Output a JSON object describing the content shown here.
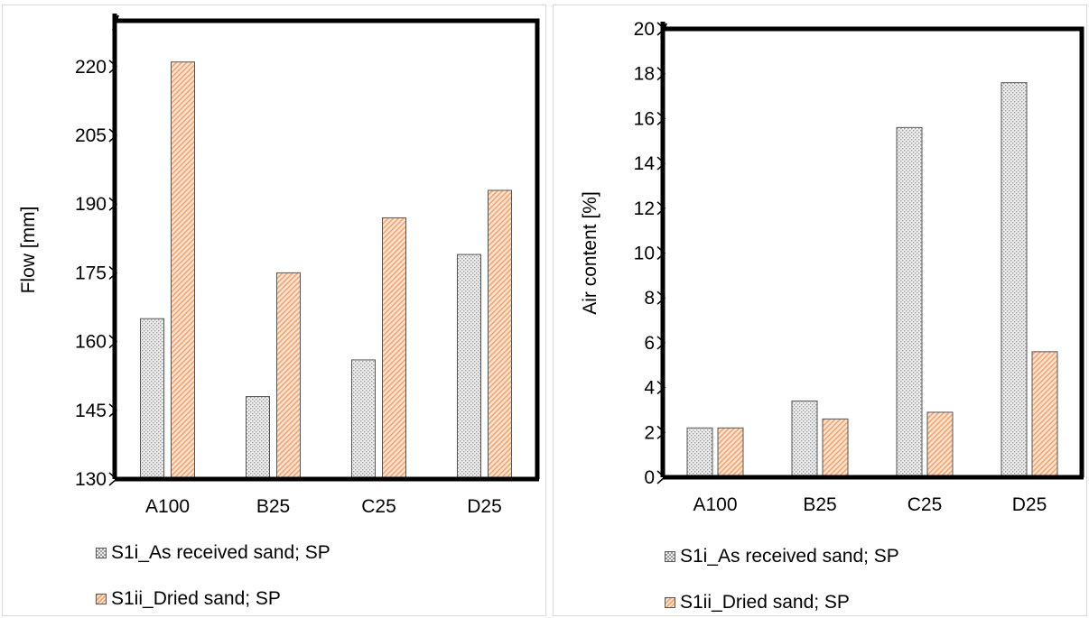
{
  "chart_data": [
    {
      "type": "bar",
      "categories": [
        "A100",
        "B25",
        "C25",
        "D25"
      ],
      "series": [
        {
          "name": "S1i_As received sand; SP",
          "values": [
            165,
            148,
            156,
            179
          ]
        },
        {
          "name": "S1ii_Dried sand; SP",
          "values": [
            221,
            175,
            187,
            193
          ]
        }
      ],
      "title": "",
      "xlabel": "",
      "ylabel": "Flow [mm]",
      "ylim": [
        130,
        230
      ],
      "yticks": [
        130,
        145,
        160,
        175,
        190,
        205,
        220
      ],
      "grid": false,
      "legend_position": "bottom"
    },
    {
      "type": "bar",
      "categories": [
        "A100",
        "B25",
        "C25",
        "D25"
      ],
      "series": [
        {
          "name": "S1i_As received sand; SP",
          "values": [
            2.2,
            3.4,
            15.6,
            17.6
          ]
        },
        {
          "name": "S1ii_Dried sand; SP",
          "values": [
            2.2,
            2.6,
            2.9,
            5.6
          ]
        }
      ],
      "title": "",
      "xlabel": "",
      "ylabel": "Air content [%]",
      "ylim": [
        0,
        20
      ],
      "yticks": [
        0,
        2,
        4,
        6,
        8,
        10,
        12,
        14,
        16,
        18,
        20
      ],
      "grid": false,
      "legend_position": "bottom"
    }
  ],
  "colors": {
    "series1_fill": "#eeeeee",
    "series1_pattern": "#9a9a9a",
    "series2_fill": "#fbe3cf",
    "series2_pattern": "#f1a574",
    "frame": "#000000"
  }
}
